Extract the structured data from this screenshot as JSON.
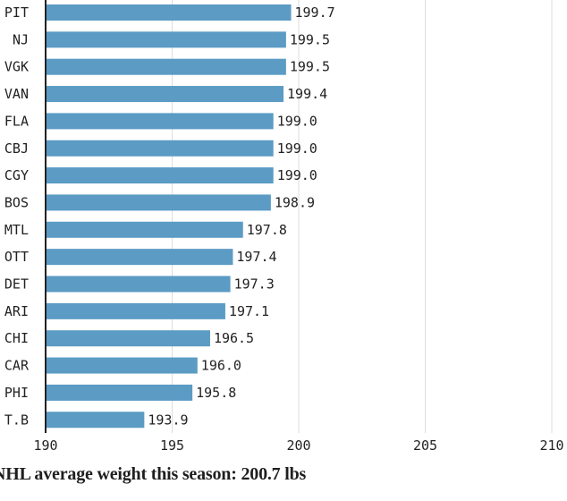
{
  "chart_data": {
    "type": "bar",
    "orientation": "horizontal",
    "categories": [
      "PIT",
      "NJ",
      "VGK",
      "VAN",
      "FLA",
      "CBJ",
      "CGY",
      "BOS",
      "MTL",
      "OTT",
      "DET",
      "ARI",
      "CHI",
      "CAR",
      "PHI",
      "T.B"
    ],
    "values": [
      199.7,
      199.5,
      199.5,
      199.4,
      199.0,
      199.0,
      199.0,
      198.9,
      197.8,
      197.4,
      197.3,
      197.1,
      196.5,
      196.0,
      195.8,
      193.9
    ],
    "value_labels": [
      "199.7",
      "199.5",
      "199.5",
      "199.4",
      "199.0",
      "199.0",
      "199.0",
      "198.9",
      "197.8",
      "197.4",
      "197.3",
      "197.1",
      "196.5",
      "196.0",
      "195.8",
      "193.9"
    ],
    "xticks": [
      "190",
      "195",
      "200",
      "205",
      "210"
    ],
    "xlim": [
      190,
      210
    ],
    "grid": true,
    "bar_color": "#5b9bc4",
    "annotation": "NHL average weight this season: 200.7 lbs"
  }
}
